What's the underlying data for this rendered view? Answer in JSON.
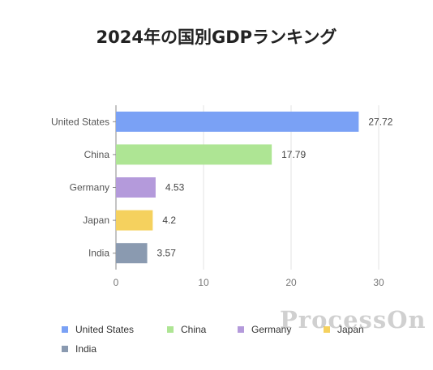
{
  "chart_data": {
    "type": "bar",
    "orientation": "horizontal",
    "title": "2024年の国別GDPランキング",
    "categories": [
      "United States",
      "China",
      "Germany",
      "Japan",
      "India"
    ],
    "values": [
      27.72,
      17.79,
      4.53,
      4.2,
      3.57
    ],
    "colors": [
      "#7aa1f5",
      "#aee594",
      "#b49adb",
      "#f5d15e",
      "#8a9ab0"
    ],
    "xlim": [
      0,
      30
    ],
    "xticks": [
      "0",
      "10",
      "20",
      "30"
    ],
    "grid": true,
    "legend_position": "bottom",
    "legend": [
      "United States",
      "China",
      "Germany",
      "Japan",
      "India"
    ]
  },
  "watermark": "ProcessOn"
}
